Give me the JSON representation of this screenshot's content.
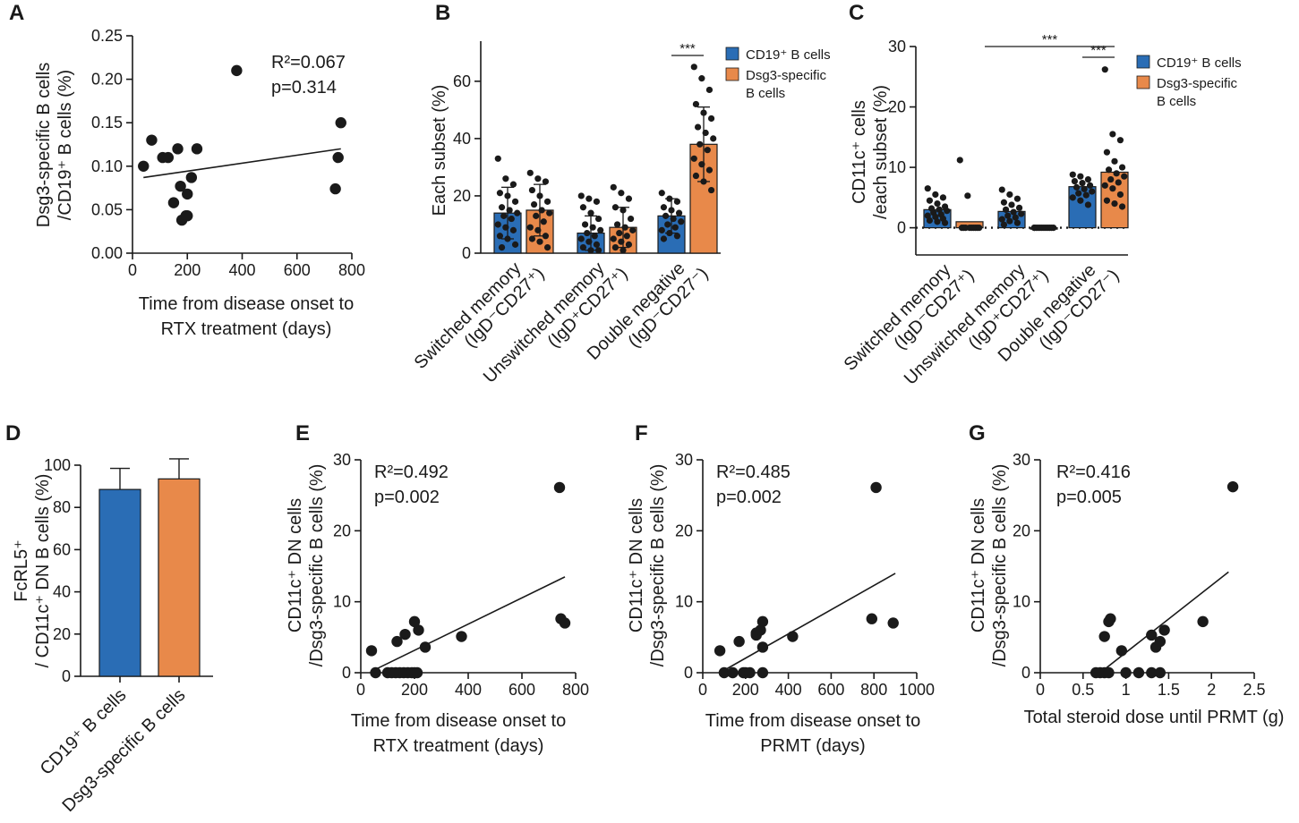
{
  "colors": {
    "blue": "#2a6db5",
    "orange": "#e8894a",
    "ink": "#1a1a1a"
  },
  "chart_data": [
    {
      "panel": "A",
      "type": "scatter",
      "xlabel": [
        "Time from disease onset to",
        "RTX treatment (days)"
      ],
      "ylabel": [
        "Dsg3-specific B cells",
        "/CD19⁺ B cells (%)"
      ],
      "xlim": [
        0,
        800
      ],
      "ylim": [
        0,
        0.25
      ],
      "xticks": [
        "0",
        "200",
        "400",
        "600",
        "800"
      ],
      "yticks": [
        "0.00",
        "0.05",
        "0.10",
        "0.15",
        "0.20",
        "0.25"
      ],
      "x": [
        40,
        70,
        110,
        130,
        150,
        175,
        200,
        215,
        165,
        180,
        195,
        235,
        200,
        380,
        740,
        750,
        760
      ],
      "y": [
        0.1,
        0.13,
        0.11,
        0.11,
        0.058,
        0.077,
        0.068,
        0.087,
        0.12,
        0.038,
        0.043,
        0.12,
        0.043,
        0.21,
        0.074,
        0.11,
        0.15
      ],
      "fit": [
        [
          40,
          0.087
        ],
        [
          760,
          0.12
        ]
      ],
      "stat_r2": "R²=0.067",
      "stat_p": "p=0.314"
    },
    {
      "panel": "B",
      "type": "bar",
      "ylabel": "Each subset (%)",
      "ylim": [
        0,
        74
      ],
      "yticks": [
        "0",
        "20",
        "40",
        "60"
      ],
      "categories": [
        "Switched memory",
        "Unswitched memory",
        "Double negative"
      ],
      "category_sublabels": [
        "(IgD⁻CD27⁺)",
        "(IgD⁺CD27⁺)",
        "(IgD⁻CD27⁻)"
      ],
      "series": [
        {
          "name": "CD19⁺ B cells",
          "values": [
            14,
            7,
            13
          ],
          "sd": [
            9,
            6,
            6
          ]
        },
        {
          "name": "Dsg3-specific B cells",
          "values": [
            15,
            9,
            38
          ],
          "sd": [
            9,
            7,
            13
          ]
        }
      ],
      "points": [
        [
          [
            33,
            26,
            24,
            21,
            20,
            18,
            16,
            15,
            14,
            13,
            12,
            10,
            9,
            8,
            6,
            5,
            3,
            2
          ],
          [
            28,
            26,
            25,
            22,
            20,
            18,
            17,
            15,
            14,
            13,
            11,
            9,
            8,
            6,
            5,
            4,
            2
          ]
        ],
        [
          [
            20,
            19,
            18,
            16,
            14,
            12,
            10,
            9,
            8,
            7,
            6,
            5,
            4,
            3,
            2,
            1,
            1
          ],
          [
            23,
            21,
            19,
            16,
            15,
            12,
            10,
            9,
            8,
            7,
            6,
            5,
            4,
            3,
            2,
            1
          ]
        ],
        [
          [
            21,
            19,
            18,
            16,
            15,
            14,
            13,
            12,
            11,
            10,
            9,
            8,
            7,
            6,
            5
          ],
          [
            65,
            61,
            57,
            52,
            49,
            47,
            44,
            42,
            40,
            38,
            36,
            33,
            31,
            29,
            27,
            25,
            22
          ]
        ]
      ],
      "significance": [
        {
          "text": "***",
          "group": 2
        }
      ],
      "legend": [
        "CD19⁺ B cells",
        "Dsg3-specific",
        "B cells"
      ]
    },
    {
      "panel": "C",
      "type": "bar",
      "ylabel": [
        "CD11c⁺ cells",
        "/each subset (%)"
      ],
      "ylim": [
        -4.5,
        30
      ],
      "yticks": [
        "0",
        "10",
        "20",
        "30"
      ],
      "categories": [
        "Switched memory",
        "Unswitched memory",
        "Double negative"
      ],
      "category_sublabels": [
        "(IgD⁻CD27⁺)",
        "(IgD⁺CD27⁺)",
        "(IgD⁻CD27⁻)"
      ],
      "series": [
        {
          "name": "CD19⁺ B cells",
          "values": [
            3,
            2.7,
            6.8
          ]
        },
        {
          "name": "Dsg3-specific B cells",
          "values": [
            1,
            0,
            9.2
          ]
        }
      ],
      "points": [
        [
          [
            6.5,
            5.5,
            5,
            4.5,
            4,
            3.5,
            3.2,
            3,
            2.8,
            2.5,
            2.2,
            2,
            1.8,
            1.5,
            1.2,
            1,
            0.8
          ],
          [
            11.2,
            5.3,
            0,
            0,
            0,
            0,
            0,
            0,
            0,
            0,
            0
          ]
        ],
        [
          [
            6.3,
            5.5,
            4.8,
            4.2,
            3.8,
            3.3,
            3,
            2.6,
            2.3,
            2,
            1.7,
            1.4,
            1.1,
            0.8,
            0.5
          ],
          [
            0,
            0,
            0,
            0,
            0,
            0,
            0,
            0,
            0,
            0,
            0,
            0
          ]
        ],
        [
          [
            8.8,
            8.5,
            8,
            7.7,
            7.4,
            7,
            6.7,
            6.4,
            6,
            5.7,
            5.4,
            5,
            4.5,
            3.8
          ],
          [
            26.2,
            15.5,
            14.5,
            12.5,
            11,
            10,
            9.6,
            9,
            8.5,
            8,
            7.5,
            7,
            6.5,
            5.5,
            4.5,
            4,
            3.5
          ]
        ]
      ],
      "significance": [
        {
          "text": "***",
          "from": 1,
          "to": 2
        },
        {
          "text": "***",
          "group": 2
        }
      ],
      "legend": [
        "CD19⁺ B cells",
        "Dsg3-specific",
        "B cells"
      ]
    },
    {
      "panel": "D",
      "type": "bar",
      "ylabel": [
        "FcRL5⁺",
        "/ CD11c⁺ DN B cells (%)"
      ],
      "ylim": [
        0,
        100
      ],
      "yticks": [
        "0",
        "20",
        "40",
        "60",
        "80",
        "100"
      ],
      "categories": [
        "CD19⁺ B cells",
        "Dsg3-specific B cells"
      ],
      "values": [
        88.5,
        93.5
      ],
      "sd": [
        10,
        9.5
      ]
    },
    {
      "panel": "E",
      "type": "scatter",
      "xlabel": [
        "Time from disease onset to",
        "RTX treatment (days)"
      ],
      "ylabel": [
        "CD11c⁺ DN cells",
        "/Dsg3-specific B cells (%)"
      ],
      "xlim": [
        0,
        800
      ],
      "ylim": [
        0,
        30
      ],
      "xticks": [
        "0",
        "200",
        "400",
        "600",
        "800"
      ],
      "yticks": [
        "0",
        "10",
        "20",
        "30"
      ],
      "x": [
        40,
        55,
        100,
        115,
        130,
        145,
        160,
        175,
        190,
        200,
        210,
        215,
        135,
        165,
        200,
        240,
        375,
        740,
        745,
        760
      ],
      "y": [
        3.1,
        0,
        0,
        0,
        0,
        0,
        0,
        0,
        0,
        0,
        0,
        6,
        4.4,
        5.4,
        7.2,
        3.6,
        5.1,
        26.1,
        7.6,
        7
      ],
      "fit": [
        [
          40,
          0.2
        ],
        [
          760,
          13.5
        ]
      ],
      "stat_r2": "R²=0.492",
      "stat_p": "p=0.002"
    },
    {
      "panel": "F",
      "type": "scatter",
      "xlabel": [
        "Time from disease onset to",
        "PRMT (days)"
      ],
      "ylabel": [
        "CD11c⁺ DN cells",
        "/Dsg3-specific B cells (%)"
      ],
      "xlim": [
        0,
        1000
      ],
      "ylim": [
        0,
        30
      ],
      "xticks": [
        "0",
        "200",
        "400",
        "600",
        "800",
        "1000"
      ],
      "yticks": [
        "0",
        "10",
        "20",
        "30"
      ],
      "x": [
        80,
        100,
        140,
        170,
        190,
        200,
        220,
        250,
        280,
        250,
        270,
        280,
        280,
        420,
        810,
        790,
        890
      ],
      "y": [
        3.1,
        0,
        0,
        4.4,
        0,
        0,
        0,
        5.3,
        0,
        5.6,
        6,
        7.2,
        3.6,
        5.1,
        26.1,
        7.6,
        7
      ],
      "fit": [
        [
          80,
          0
        ],
        [
          900,
          14
        ]
      ],
      "stat_r2": "R²=0.485",
      "stat_p": "p=0.002"
    },
    {
      "panel": "G",
      "type": "scatter",
      "xlabel": [
        "Total steroid dose until PRMT (g)"
      ],
      "ylabel": [
        "CD11c⁺ DN cells",
        "/Dsg3-specific B cells (%)"
      ],
      "xlim": [
        0,
        2.5
      ],
      "ylim": [
        0,
        30
      ],
      "xticks": [
        "0",
        "0.5",
        "1",
        "1.5",
        "2",
        "2.5"
      ],
      "yticks": [
        "0",
        "10",
        "20",
        "30"
      ],
      "x": [
        0.65,
        0.7,
        0.75,
        0.8,
        0.75,
        0.8,
        0.82,
        0.95,
        1.0,
        1.15,
        1.3,
        1.3,
        1.35,
        1.4,
        1.4,
        1.45,
        1.9,
        2.25
      ],
      "y": [
        0,
        0,
        0,
        0,
        5.1,
        7.2,
        7.6,
        3.1,
        0,
        0,
        0,
        5.3,
        3.6,
        4.4,
        0,
        6,
        7.2,
        26.2
      ],
      "fit": [
        [
          0.7,
          0
        ],
        [
          2.2,
          14.2
        ]
      ],
      "stat_r2": "R²=0.416",
      "stat_p": "p=0.005"
    }
  ]
}
